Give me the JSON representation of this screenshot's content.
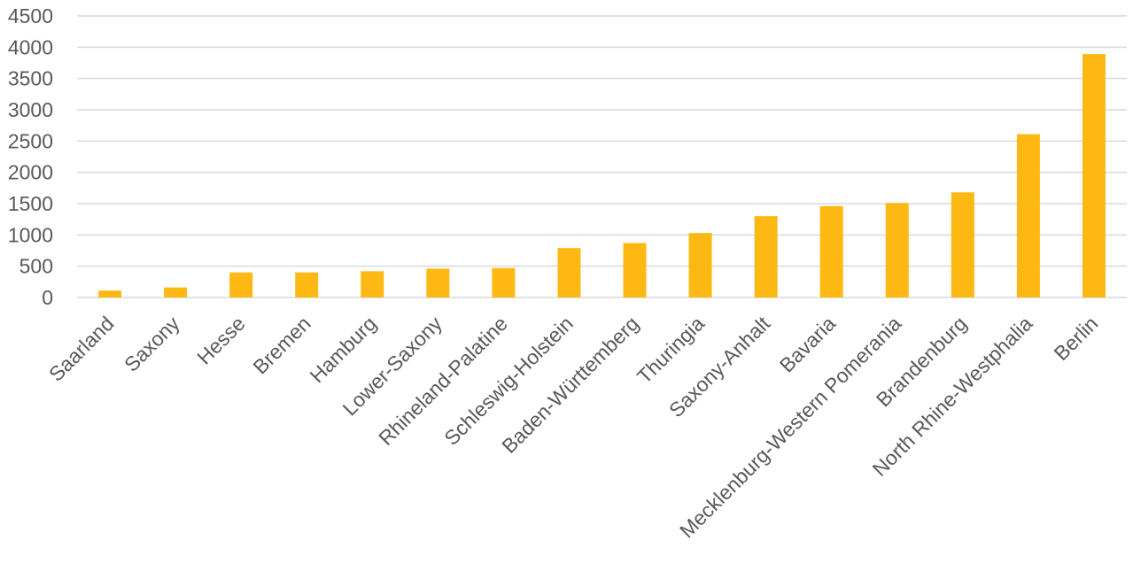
{
  "chart_data": {
    "type": "bar",
    "title": "",
    "xlabel": "",
    "ylabel": "",
    "categories": [
      "Saarland",
      "Saxony",
      "Hesse",
      "Bremen",
      "Hamburg",
      "Lower-Saxony",
      "Rhineland-Palatine",
      "Schleswig-Holstein",
      "Baden-Württemberg",
      "Thuringia",
      "Saxony-Anhalt",
      "Bavaria",
      "Mecklenburg-Western Pomerania",
      "Brandenburg",
      "North Rhine-Westphalia",
      "Berlin"
    ],
    "values": [
      110,
      160,
      400,
      400,
      420,
      460,
      470,
      790,
      870,
      1030,
      1300,
      1460,
      1510,
      1680,
      2610,
      3890
    ],
    "ylim": [
      0,
      4500
    ],
    "yticks": [
      0,
      500,
      1000,
      1500,
      2000,
      2500,
      3000,
      3500,
      4000,
      4500
    ],
    "grid": true,
    "bar_color": "#FDB813",
    "grid_color": "#D9D9D9",
    "text_color": "#595959"
  }
}
